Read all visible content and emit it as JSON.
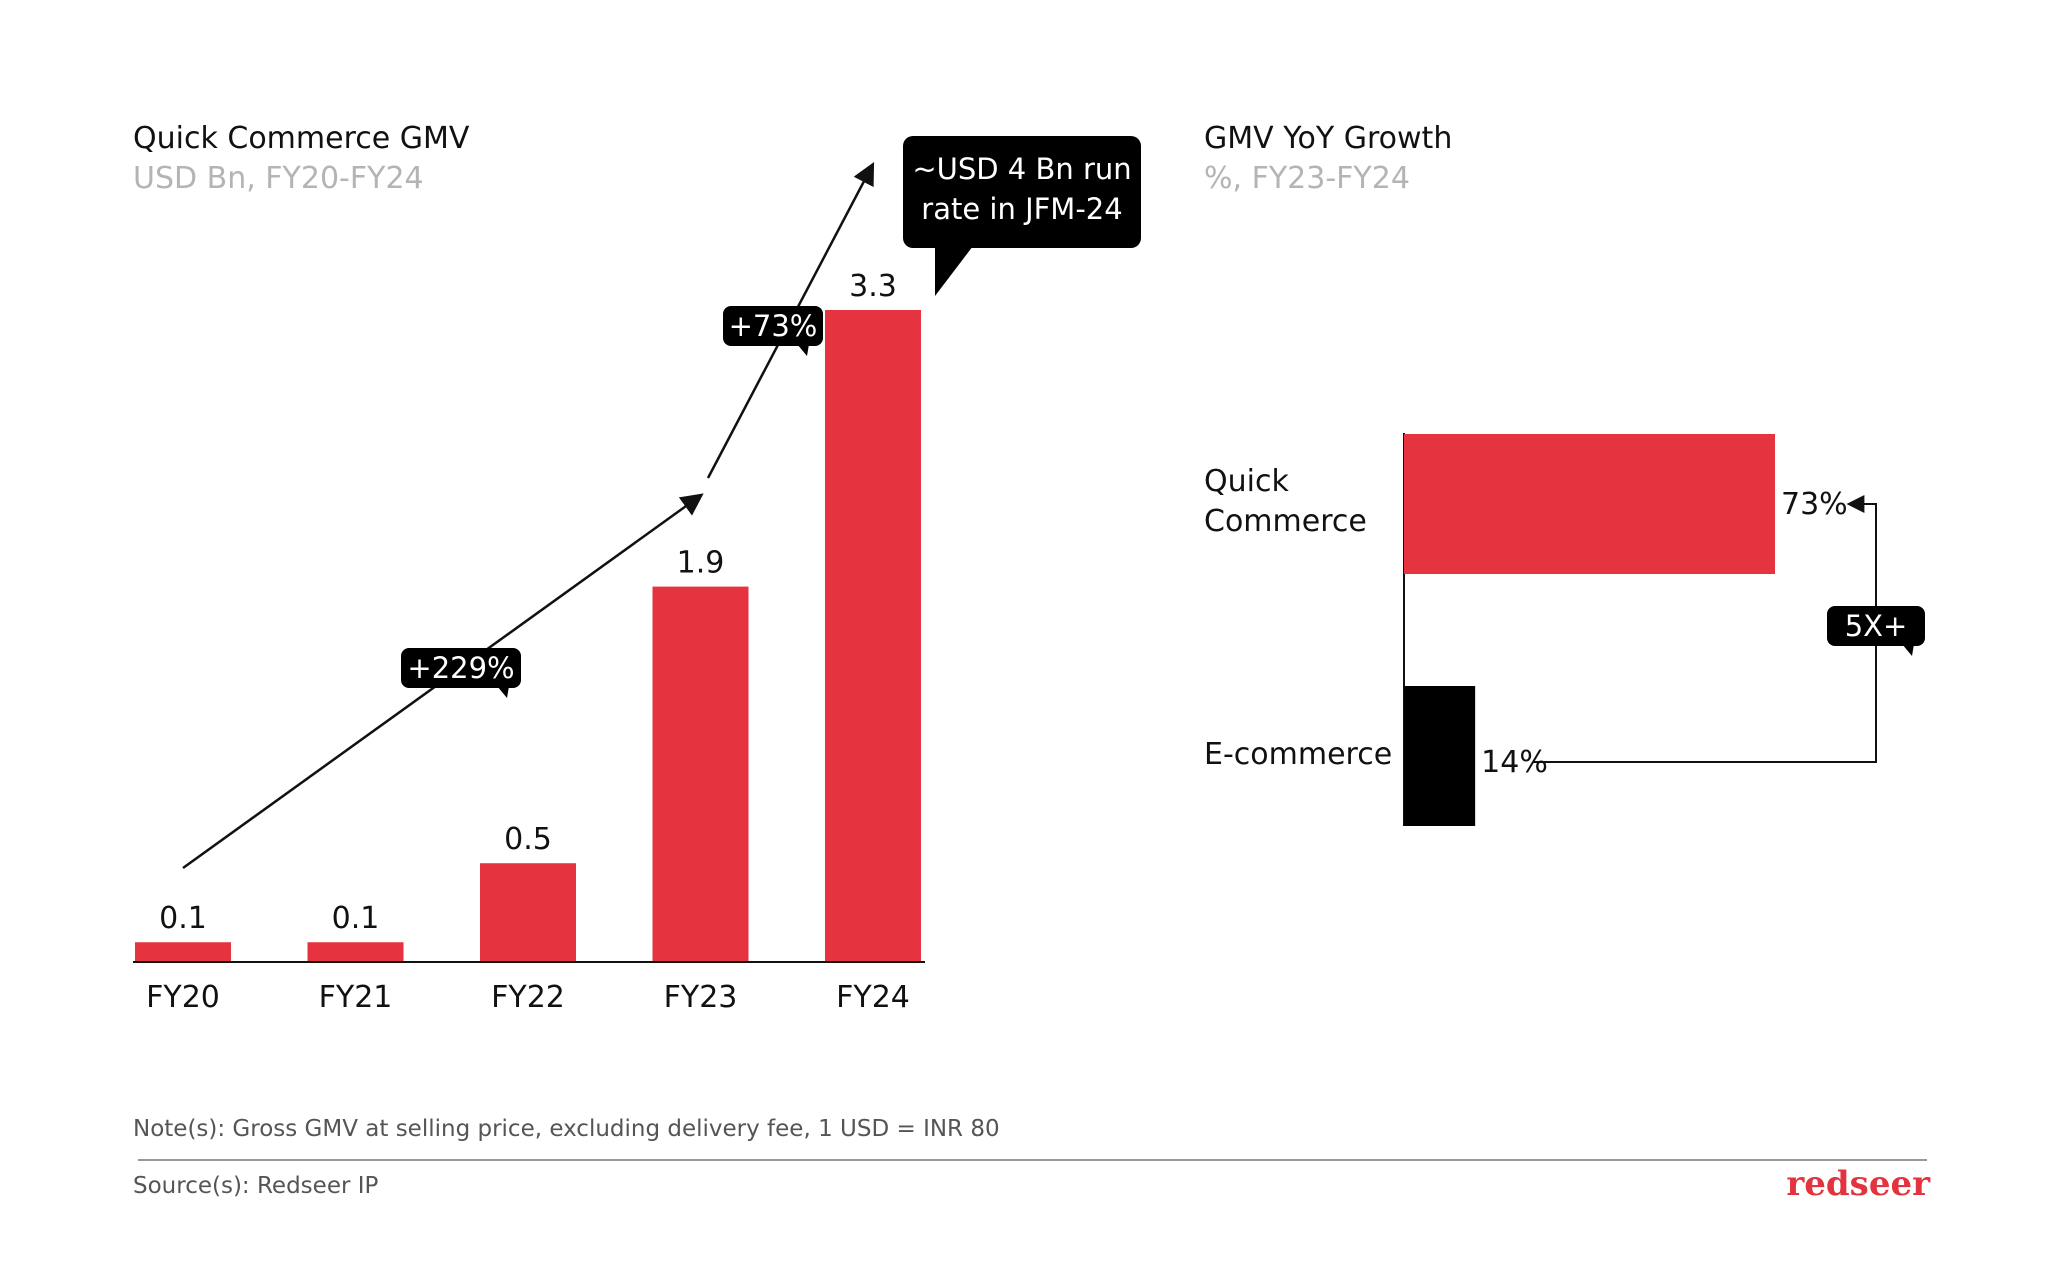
{
  "colors": {
    "accent": "#e5333f",
    "dark": "#000000"
  },
  "chart_data": [
    {
      "type": "bar",
      "title": "Quick Commerce GMV",
      "subtitle": "USD Bn, FY20-FY24",
      "categories": [
        "FY20",
        "FY21",
        "FY22",
        "FY23",
        "FY24"
      ],
      "values": [
        0.1,
        0.1,
        0.5,
        1.9,
        3.3
      ],
      "value_labels": [
        "0.1",
        "0.1",
        "0.5",
        "1.9",
        "3.3"
      ],
      "ylim": [
        0,
        3.3
      ],
      "grid": false,
      "annotations": [
        {
          "text": "+229%",
          "from": "FY20",
          "to": "FY23"
        },
        {
          "text": "+73%",
          "from": "FY23",
          "to": "FY24"
        }
      ],
      "callout": [
        "~USD 4 Bn run",
        "rate in JFM-24"
      ]
    },
    {
      "type": "bar",
      "orientation": "horizontal",
      "title": "GMV YoY Growth",
      "subtitle": "%, FY23-FY24",
      "categories": [
        [
          "Quick",
          "Commerce"
        ],
        [
          "E-commerce"
        ]
      ],
      "values": [
        73,
        14
      ],
      "value_labels": [
        "73%",
        "14%"
      ],
      "xlim": [
        0,
        73
      ],
      "grid": false,
      "annotation": "5X+"
    }
  ],
  "footer": {
    "note": "Note(s): Gross GMV at selling price, excluding delivery fee, 1 USD = INR 80",
    "source": "Source(s): Redseer IP",
    "brand": "redseer"
  }
}
